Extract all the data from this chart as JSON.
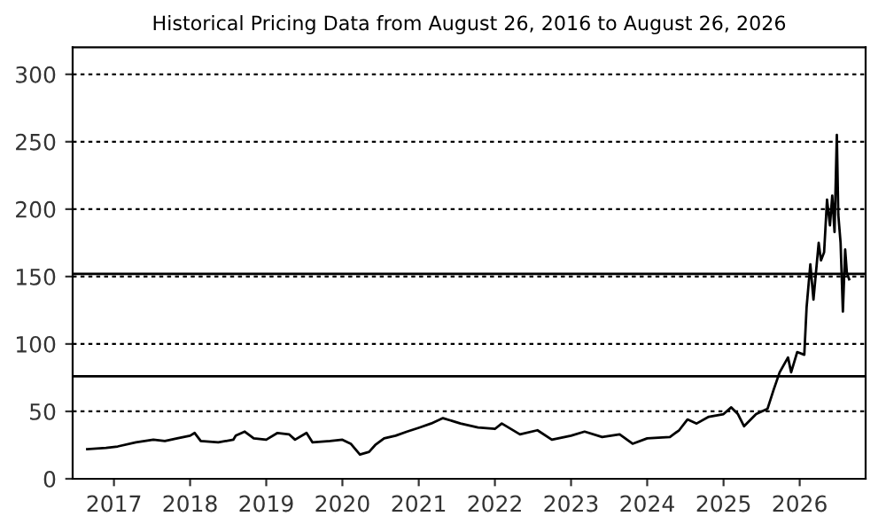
{
  "chart_data": {
    "type": "line",
    "title": "Historical Pricing Data from August 26, 2016 to August 26, 2026",
    "x": [
      "2016-08-26",
      "2016-11-24",
      "2017-01-19",
      "2017-04-16",
      "2017-07-09",
      "2017-09-02",
      "2017-10-31",
      "2018-01-01",
      "2018-01-23",
      "2018-02-21",
      "2018-05-16",
      "2018-07-27",
      "2018-08-08",
      "2018-09-20",
      "2018-11-02",
      "2019-01-01",
      "2019-02-24",
      "2019-04-20",
      "2019-05-19",
      "2019-07-13",
      "2019-08-11",
      "2019-11-03",
      "2020-01-01",
      "2020-02-10",
      "2020-03-25",
      "2020-05-08",
      "2020-06-06",
      "2020-07-19",
      "2020-09-12",
      "2020-11-06",
      "2021-01-04",
      "2021-03-01",
      "2021-04-27",
      "2021-07-20",
      "2021-10-12",
      "2022-01-01",
      "2022-02-03",
      "2022-05-01",
      "2022-07-24",
      "2022-10-01",
      "2023-01-01",
      "2023-03-07",
      "2023-05-30",
      "2023-08-22",
      "2023-10-23",
      "2024-01-01",
      "2024-04-19",
      "2024-06-02",
      "2024-07-12",
      "2024-08-25",
      "2024-10-22",
      "2025-01-01",
      "2025-02-07",
      "2025-03-11",
      "2025-04-09",
      "2025-06-06",
      "2025-07-31",
      "2025-08-29",
      "2025-09-27",
      "2025-11-06",
      "2025-11-21",
      "2025-12-20",
      "2026-01-23",
      "2026-02-03",
      "2026-02-21",
      "2026-03-08",
      "2026-04-02",
      "2026-04-13",
      "2026-04-28",
      "2026-05-12",
      "2026-05-26",
      "2026-06-06",
      "2026-06-17",
      "2026-06-28",
      "2026-07-05",
      "2026-07-16",
      "2026-07-27",
      "2026-08-07",
      "2026-08-15",
      "2026-08-26"
    ],
    "series": [
      {
        "color": "#000000",
        "values": [
          22,
          23,
          24,
          27,
          29,
          28,
          30,
          32,
          34,
          28,
          27,
          29,
          32,
          35,
          30,
          29,
          34,
          33,
          29,
          34,
          27,
          28,
          29,
          26,
          18,
          20,
          25,
          30,
          32,
          35,
          38,
          41,
          45,
          41,
          38,
          37,
          41,
          33,
          36,
          29,
          32,
          35,
          31,
          33,
          26,
          30,
          31,
          36,
          44,
          41,
          46,
          48,
          53,
          48,
          39,
          48,
          52,
          66,
          79,
          90,
          79,
          94,
          92,
          127,
          159,
          133,
          175,
          162,
          168,
          207,
          188,
          210,
          183,
          255,
          196,
          175,
          124,
          170,
          153,
          148
        ]
      }
    ],
    "xlim": [
      "2016-06-17",
      "2026-11-13"
    ],
    "xticks": [
      {
        "value": "2017-01-01",
        "label": "2017"
      },
      {
        "value": "2018-01-01",
        "label": "2018"
      },
      {
        "value": "2019-01-01",
        "label": "2019"
      },
      {
        "value": "2020-01-01",
        "label": "2020"
      },
      {
        "value": "2021-01-01",
        "label": "2021"
      },
      {
        "value": "2022-01-01",
        "label": "2022"
      },
      {
        "value": "2023-01-01",
        "label": "2023"
      },
      {
        "value": "2024-01-01",
        "label": "2024"
      },
      {
        "value": "2025-01-01",
        "label": "2025"
      },
      {
        "value": "2026-01-01",
        "label": "2026"
      }
    ],
    "ylim": [
      0,
      320
    ],
    "yticks": [
      0,
      50,
      100,
      150,
      200,
      250,
      300
    ],
    "grid": "y",
    "line_style": "solid",
    "marker": "none",
    "legend": false,
    "ref_lines": [
      {
        "axis": "y",
        "value": 76,
        "color": "#000000",
        "line_style": "solid"
      },
      {
        "axis": "y",
        "value": 152,
        "color": "#000000",
        "line_style": "solid"
      }
    ]
  }
}
